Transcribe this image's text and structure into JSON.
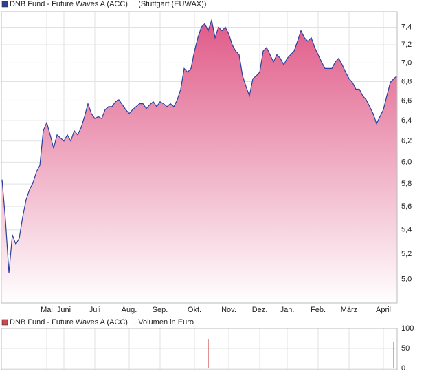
{
  "chart_data": [
    {
      "type": "area",
      "legend_label": "DNB Fund - Future Waves A (ACC) ... (Stuttgart (EUWAX))",
      "color": "#2a3f9e",
      "fill_color": "#e05a88",
      "log_scale": true,
      "grid": true,
      "categories": [
        null,
        null,
        null,
        null,
        null,
        null,
        null,
        null,
        null,
        null,
        null,
        null,
        null,
        "Mai",
        null,
        null,
        null,
        null,
        "Juni",
        null,
        null,
        null,
        null,
        null,
        null,
        null,
        null,
        "Juli",
        null,
        null,
        null,
        null,
        null,
        null,
        null,
        null,
        null,
        "Aug.",
        null,
        null,
        null,
        null,
        null,
        null,
        null,
        null,
        "Sep.",
        null,
        null,
        null,
        null,
        null,
        null,
        null,
        null,
        null,
        "Okt.",
        null,
        null,
        null,
        null,
        null,
        null,
        null,
        null,
        null,
        "Nov.",
        null,
        null,
        null,
        null,
        null,
        null,
        null,
        null,
        "Dez.",
        null,
        null,
        null,
        null,
        null,
        null,
        null,
        "Jan.",
        null,
        null,
        null,
        null,
        null,
        null,
        null,
        null,
        "Feb.",
        null,
        null,
        null,
        null,
        null,
        null,
        null,
        null,
        "März",
        null,
        null,
        null,
        null,
        null,
        null,
        null,
        null,
        null,
        "April",
        null,
        null,
        null,
        null
      ],
      "values": [
        5.84,
        5.48,
        5.05,
        5.36,
        5.28,
        5.33,
        5.51,
        5.66,
        5.75,
        5.81,
        5.91,
        5.97,
        6.3,
        6.38,
        6.26,
        6.13,
        6.26,
        6.23,
        6.2,
        6.26,
        6.2,
        6.3,
        6.26,
        6.33,
        6.44,
        6.57,
        6.47,
        6.42,
        6.44,
        6.42,
        6.51,
        6.54,
        6.54,
        6.59,
        6.61,
        6.56,
        6.51,
        6.47,
        6.51,
        6.54,
        6.57,
        6.57,
        6.52,
        6.56,
        6.59,
        6.54,
        6.59,
        6.57,
        6.54,
        6.57,
        6.54,
        6.61,
        6.72,
        6.94,
        6.9,
        6.94,
        7.13,
        7.28,
        7.4,
        7.44,
        7.36,
        7.48,
        7.28,
        7.4,
        7.36,
        7.4,
        7.32,
        7.2,
        7.13,
        7.09,
        6.86,
        6.75,
        6.65,
        6.83,
        6.86,
        6.9,
        7.13,
        7.17,
        7.09,
        7.01,
        7.09,
        7.05,
        6.98,
        7.05,
        7.09,
        7.13,
        7.24,
        7.36,
        7.28,
        7.24,
        7.28,
        7.17,
        7.09,
        7.01,
        6.94,
        6.94,
        6.94,
        7.01,
        7.05,
        6.98,
        6.9,
        6.83,
        6.79,
        6.72,
        6.72,
        6.65,
        6.61,
        6.54,
        6.47,
        6.37,
        6.44,
        6.51,
        6.65,
        6.79,
        6.83,
        6.86
      ],
      "ylim": [
        4.82,
        7.58
      ],
      "yticks": [
        {
          "value": 5.0,
          "label": "5,0"
        },
        {
          "value": 5.2,
          "label": "5,2"
        },
        {
          "value": 5.4,
          "label": "5,4"
        },
        {
          "value": 5.6,
          "label": "5,6"
        },
        {
          "value": 5.8,
          "label": "5,8"
        },
        {
          "value": 6.0,
          "label": "6,0"
        },
        {
          "value": 6.2,
          "label": "6,2"
        },
        {
          "value": 6.4,
          "label": "6,4"
        },
        {
          "value": 6.6,
          "label": "6,6"
        },
        {
          "value": 6.8,
          "label": "6,8"
        },
        {
          "value": 7.0,
          "label": "7,0"
        },
        {
          "value": 7.2,
          "label": "7,2"
        },
        {
          "value": 7.4,
          "label": "7,4"
        }
      ]
    },
    {
      "type": "bar",
      "legend_label": "DNB Fund - Future Waves A (ACC) ... Volumen in Euro",
      "color": "#d04848",
      "grid": true,
      "values": [
        null,
        null,
        null,
        null,
        null,
        null,
        null,
        null,
        null,
        null,
        null,
        null,
        null,
        null,
        null,
        null,
        null,
        null,
        null,
        null,
        null,
        null,
        null,
        null,
        null,
        null,
        null,
        null,
        null,
        null,
        null,
        null,
        null,
        null,
        null,
        null,
        null,
        null,
        null,
        null,
        null,
        null,
        null,
        null,
        null,
        null,
        null,
        null,
        null,
        null,
        null,
        null,
        null,
        null,
        null,
        null,
        null,
        null,
        null,
        null,
        74,
        null,
        null,
        null,
        null,
        null,
        null,
        null,
        null,
        null,
        null,
        null,
        null,
        null,
        null,
        null,
        null,
        null,
        null,
        null,
        null,
        null,
        null,
        null,
        null,
        null,
        null,
        null,
        null,
        null,
        null,
        null,
        null,
        null,
        null,
        null,
        null,
        null,
        null,
        null,
        null,
        null,
        null,
        null,
        null,
        null,
        null,
        null,
        null,
        null,
        null,
        null,
        null,
        null,
        67,
        null
      ],
      "colors": [
        null,
        null,
        null,
        null,
        null,
        null,
        null,
        null,
        null,
        null,
        null,
        null,
        null,
        null,
        null,
        null,
        null,
        null,
        null,
        null,
        null,
        null,
        null,
        null,
        null,
        null,
        null,
        null,
        null,
        null,
        null,
        null,
        null,
        null,
        null,
        null,
        null,
        null,
        null,
        null,
        null,
        null,
        null,
        null,
        null,
        null,
        null,
        null,
        null,
        null,
        null,
        null,
        null,
        null,
        null,
        null,
        null,
        null,
        null,
        null,
        "#d04848",
        null,
        null,
        null,
        null,
        null,
        null,
        null,
        null,
        null,
        null,
        null,
        null,
        null,
        null,
        null,
        null,
        null,
        null,
        null,
        null,
        null,
        null,
        null,
        null,
        null,
        null,
        null,
        null,
        null,
        null,
        null,
        null,
        null,
        null,
        null,
        null,
        null,
        null,
        null,
        null,
        null,
        null,
        null,
        null,
        null,
        null,
        null,
        null,
        null,
        null,
        null,
        null,
        null,
        "#3fb83f",
        null
      ],
      "ylim": [
        0,
        100
      ],
      "yticks": [
        0,
        50,
        100
      ]
    }
  ]
}
